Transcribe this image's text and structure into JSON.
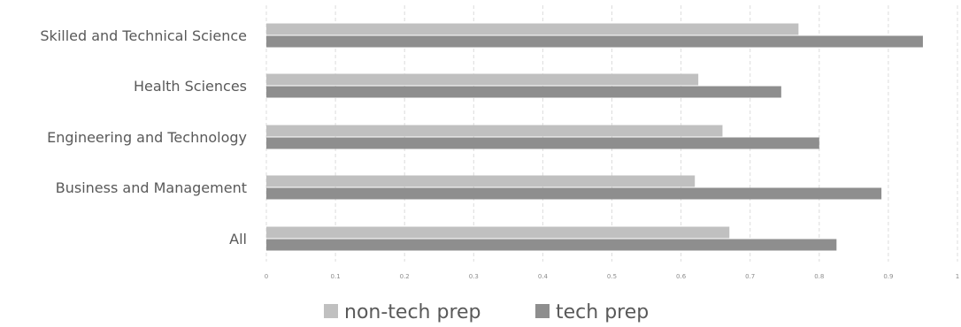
{
  "chart_data": {
    "type": "bar",
    "orientation": "horizontal",
    "categories": [
      "Skilled and Technical Science",
      "Health Sciences",
      "Engineering and Technology",
      "Business and Management",
      "All"
    ],
    "series": [
      {
        "name": "non-tech prep",
        "color": "#c0c0c0",
        "values": [
          0.77,
          0.625,
          0.66,
          0.62,
          0.67
        ]
      },
      {
        "name": "tech prep",
        "color": "#8e8e8e",
        "values": [
          0.95,
          0.745,
          0.8,
          0.89,
          0.825
        ]
      }
    ],
    "xticks": [
      "0",
      "0.1",
      "0.2",
      "0.3",
      "0.4",
      "0.5",
      "0.6",
      "0.7",
      "0.8",
      "0.9",
      "1"
    ],
    "xlim": [
      0,
      1
    ],
    "grid": true,
    "legend_position": "bottom",
    "title": "",
    "xlabel": "",
    "ylabel": ""
  }
}
